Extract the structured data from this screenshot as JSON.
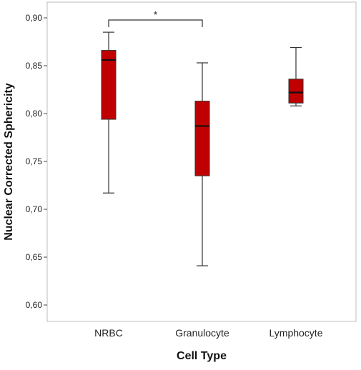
{
  "chart_data": {
    "type": "boxplot",
    "xlabel": "Cell Type",
    "ylabel": "Nuclear Corrected Sphericity",
    "ylim": [
      0.6,
      0.9
    ],
    "y_ticks": [
      "0,60",
      "0,65",
      "0,70",
      "0,75",
      "0,80",
      "0,85",
      "0,90"
    ],
    "y_tick_values": [
      0.6,
      0.65,
      0.7,
      0.75,
      0.8,
      0.85,
      0.9
    ],
    "categories": [
      "NRBC",
      "Granulocyte",
      "Lymphocyte"
    ],
    "boxes": [
      {
        "category": "NRBC",
        "min": 0.717,
        "q1": 0.794,
        "median": 0.856,
        "q3": 0.866,
        "max": 0.885
      },
      {
        "category": "Granulocyte",
        "min": 0.641,
        "q1": 0.735,
        "median": 0.787,
        "q3": 0.813,
        "max": 0.853
      },
      {
        "category": "Lymphocyte",
        "min": 0.808,
        "q1": 0.811,
        "median": 0.822,
        "q3": 0.836,
        "max": 0.869
      }
    ],
    "significance": [
      {
        "from": "NRBC",
        "to": "Granulocyte",
        "label": "*"
      }
    ],
    "box_color": "#c00000",
    "grid": false
  }
}
